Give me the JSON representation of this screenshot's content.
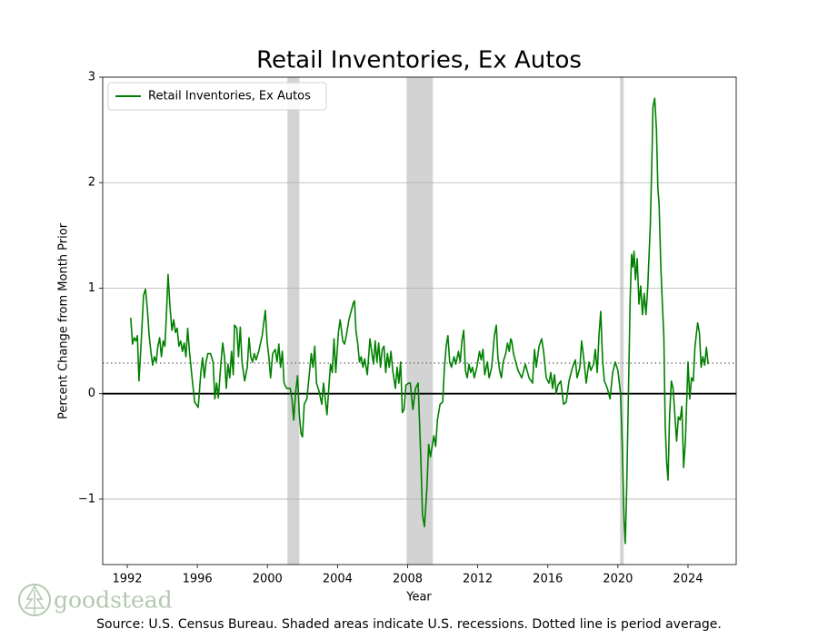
{
  "chart_data": {
    "type": "line",
    "title": "Retail Inventories, Ex Autos",
    "x_label": "Year",
    "y_label": "Percent Change from Month Prior",
    "source": "Source: U.S. Census Bureau. Shaded areas indicate U.S. recessions. Dotted line is period average.",
    "watermark": "goodstead",
    "legend": "upper left",
    "grid": true,
    "xlim": [
      1990.6,
      2026.75
    ],
    "ylim": [
      -1.62,
      3.0
    ],
    "xticks": [
      1992,
      1996,
      2000,
      2004,
      2008,
      2012,
      2016,
      2020,
      2024
    ],
    "yticks": [
      {
        "value": -1,
        "label": "−1"
      },
      0,
      1,
      2,
      3
    ],
    "zero_line": 0,
    "average_line": 0.29,
    "shaded_regions": [
      [
        2001.14,
        2001.82
      ],
      [
        2007.94,
        2009.44
      ],
      [
        2020.12,
        2020.33
      ]
    ],
    "x": [
      1992.2,
      1992.3,
      1992.4,
      1992.5,
      1992.58,
      1992.67,
      1992.8,
      1992.93,
      1993.04,
      1993.15,
      1993.25,
      1993.35,
      1993.45,
      1993.55,
      1993.65,
      1993.75,
      1993.85,
      1993.95,
      1994.05,
      1994.15,
      1994.25,
      1994.33,
      1994.43,
      1994.55,
      1994.65,
      1994.75,
      1994.85,
      1994.95,
      1995.05,
      1995.15,
      1995.25,
      1995.35,
      1995.45,
      1995.55,
      1995.7,
      1995.85,
      1996.05,
      1996.2,
      1996.3,
      1996.4,
      1996.5,
      1996.6,
      1996.75,
      1996.9,
      1997.0,
      1997.1,
      1997.2,
      1997.35,
      1997.45,
      1997.55,
      1997.65,
      1997.75,
      1997.85,
      1997.95,
      1998.05,
      1998.12,
      1998.25,
      1998.35,
      1998.45,
      1998.55,
      1998.7,
      1998.85,
      1998.95,
      1999.05,
      1999.15,
      1999.25,
      1999.35,
      1999.5,
      1999.7,
      1999.88,
      1999.98,
      2000.08,
      2000.18,
      2000.3,
      2000.45,
      2000.55,
      2000.65,
      2000.75,
      2000.85,
      2000.95,
      2001.1,
      2001.3,
      2001.4,
      2001.5,
      2001.6,
      2001.72,
      2001.82,
      2001.92,
      2002.0,
      2002.1,
      2002.25,
      2002.4,
      2002.5,
      2002.6,
      2002.7,
      2002.8,
      2002.95,
      2003.1,
      2003.2,
      2003.3,
      2003.4,
      2003.5,
      2003.6,
      2003.7,
      2003.8,
      2003.9,
      2004.05,
      2004.15,
      2004.3,
      2004.4,
      2004.5,
      2004.65,
      2004.9,
      2004.97,
      2005.05,
      2005.15,
      2005.25,
      2005.35,
      2005.45,
      2005.55,
      2005.7,
      2005.85,
      2005.95,
      2006.05,
      2006.15,
      2006.25,
      2006.35,
      2006.45,
      2006.55,
      2006.65,
      2006.75,
      2006.85,
      2006.95,
      2007.05,
      2007.15,
      2007.3,
      2007.4,
      2007.5,
      2007.6,
      2007.7,
      2007.8,
      2007.9,
      2008.05,
      2008.15,
      2008.3,
      2008.45,
      2008.6,
      2008.75,
      2008.85,
      2008.96,
      2009.1,
      2009.2,
      2009.3,
      2009.4,
      2009.5,
      2009.6,
      2009.7,
      2009.85,
      2010.0,
      2010.1,
      2010.2,
      2010.3,
      2010.4,
      2010.5,
      2010.65,
      2010.75,
      2010.9,
      2011.0,
      2011.1,
      2011.2,
      2011.3,
      2011.4,
      2011.5,
      2011.6,
      2011.7,
      2011.8,
      2011.95,
      2012.1,
      2012.2,
      2012.3,
      2012.4,
      2012.55,
      2012.65,
      2012.8,
      2012.95,
      2013.06,
      2013.15,
      2013.25,
      2013.35,
      2013.45,
      2013.6,
      2013.7,
      2013.8,
      2013.88,
      2013.94,
      2014.04,
      2014.3,
      2014.51,
      2014.72,
      2014.93,
      2015.13,
      2015.24,
      2015.34,
      2015.5,
      2015.65,
      2015.76,
      2015.91,
      2016.07,
      2016.17,
      2016.27,
      2016.38,
      2016.48,
      2016.58,
      2016.74,
      2016.9,
      2017.05,
      2017.21,
      2017.41,
      2017.57,
      2017.67,
      2017.83,
      2017.93,
      2018.04,
      2018.19,
      2018.35,
      2018.45,
      2018.61,
      2018.71,
      2018.82,
      2018.92,
      2019.02,
      2019.13,
      2019.23,
      2019.4,
      2019.55,
      2019.7,
      2019.85,
      2020.0,
      2020.15,
      2020.25,
      2020.35,
      2020.42,
      2020.5,
      2020.6,
      2020.7,
      2020.78,
      2020.85,
      2020.92,
      2021.0,
      2021.1,
      2021.2,
      2021.3,
      2021.4,
      2021.5,
      2021.6,
      2021.7,
      2021.85,
      2021.95,
      2022.0,
      2022.1,
      2022.2,
      2022.28,
      2022.35,
      2022.45,
      2022.55,
      2022.62,
      2022.7,
      2022.78,
      2022.86,
      2022.95,
      2023.05,
      2023.15,
      2023.25,
      2023.35,
      2023.45,
      2023.55,
      2023.65,
      2023.75,
      2023.85,
      2024.0,
      2024.1,
      2024.2,
      2024.3,
      2024.4,
      2024.55,
      2024.65,
      2024.75,
      2024.85,
      2024.95,
      2025.05,
      2025.15
    ],
    "series": [
      {
        "name": "Retail Inventories, Ex Autos",
        "color": "#008000",
        "values": [
          0.72,
          0.47,
          0.53,
          0.5,
          0.55,
          0.12,
          0.5,
          0.93,
          0.99,
          0.8,
          0.55,
          0.4,
          0.27,
          0.35,
          0.3,
          0.45,
          0.53,
          0.35,
          0.5,
          0.45,
          0.8,
          1.13,
          0.85,
          0.6,
          0.7,
          0.58,
          0.62,
          0.45,
          0.5,
          0.4,
          0.48,
          0.35,
          0.62,
          0.4,
          0.15,
          -0.08,
          -0.13,
          0.2,
          0.34,
          0.15,
          0.3,
          0.38,
          0.38,
          0.3,
          -0.05,
          0.1,
          -0.04,
          0.3,
          0.48,
          0.35,
          0.05,
          0.28,
          0.15,
          0.4,
          0.18,
          0.65,
          0.62,
          0.35,
          0.63,
          0.3,
          0.12,
          0.25,
          0.53,
          0.35,
          0.3,
          0.38,
          0.32,
          0.4,
          0.55,
          0.79,
          0.5,
          0.35,
          0.15,
          0.38,
          0.42,
          0.3,
          0.47,
          0.25,
          0.4,
          0.1,
          0.05,
          0.05,
          -0.05,
          -0.25,
          0,
          0.17,
          -0.2,
          -0.38,
          -0.41,
          -0.1,
          -0.05,
          0.2,
          0.38,
          0.25,
          0.45,
          0.1,
          0.02,
          -0.1,
          0.1,
          -0.05,
          -0.2,
          0.05,
          0.28,
          0.2,
          0.52,
          0.2,
          0.58,
          0.7,
          0.5,
          0.47,
          0.55,
          0.7,
          0.86,
          0.88,
          0.6,
          0.48,
          0.3,
          0.35,
          0.25,
          0.33,
          0.18,
          0.52,
          0.4,
          0.28,
          0.5,
          0.3,
          0.48,
          0.25,
          0.42,
          0.45,
          0.2,
          0.38,
          0.25,
          0.4,
          0.22,
          0.05,
          0.25,
          0.1,
          0.3,
          -0.18,
          -0.15,
          0.08,
          0.1,
          0.1,
          -0.15,
          0.05,
          0.1,
          -0.6,
          -1.15,
          -1.26,
          -0.9,
          -0.48,
          -0.6,
          -0.5,
          -0.4,
          -0.5,
          -0.25,
          -0.1,
          -0.08,
          0.25,
          0.45,
          0.55,
          0.3,
          0.25,
          0.35,
          0.28,
          0.4,
          0.3,
          0.5,
          0.6,
          0.22,
          0.15,
          0.28,
          0.2,
          0.25,
          0.15,
          0.25,
          0.4,
          0.32,
          0.42,
          0.18,
          0.3,
          0.15,
          0.25,
          0.55,
          0.65,
          0.35,
          0.22,
          0.15,
          0.3,
          0.38,
          0.48,
          0.4,
          0.52,
          0.5,
          0.38,
          0.22,
          0.15,
          0.28,
          0.15,
          0.1,
          0.42,
          0.25,
          0.45,
          0.52,
          0.4,
          0.15,
          0.1,
          0.2,
          0.05,
          0.18,
          0,
          0.08,
          0.12,
          -0.1,
          -0.08,
          0.12,
          0.25,
          0.32,
          0.15,
          0.25,
          0.5,
          0.35,
          0.1,
          0.3,
          0.22,
          0.28,
          0.42,
          0.2,
          0.55,
          0.78,
          0.3,
          0.12,
          0.05,
          -0.05,
          0.2,
          0.3,
          0.22,
          0,
          -0.5,
          -1.2,
          -1.42,
          -0.9,
          0,
          0.9,
          1.32,
          1.2,
          1.35,
          1.08,
          1.28,
          0.85,
          1.02,
          0.75,
          0.95,
          0.75,
          1,
          1.6,
          2.3,
          2.72,
          2.8,
          2.5,
          1.95,
          1.8,
          1.2,
          0.8,
          0.55,
          -0.3,
          -0.65,
          -0.82,
          -0.2,
          0.12,
          0.05,
          -0.2,
          -0.45,
          -0.22,
          -0.25,
          -0.12,
          -0.7,
          -0.45,
          0.3,
          -0.05,
          0.15,
          0.12,
          0.45,
          0.67,
          0.58,
          0.25,
          0.35,
          0.27,
          0.44,
          0.28
        ]
      }
    ]
  }
}
